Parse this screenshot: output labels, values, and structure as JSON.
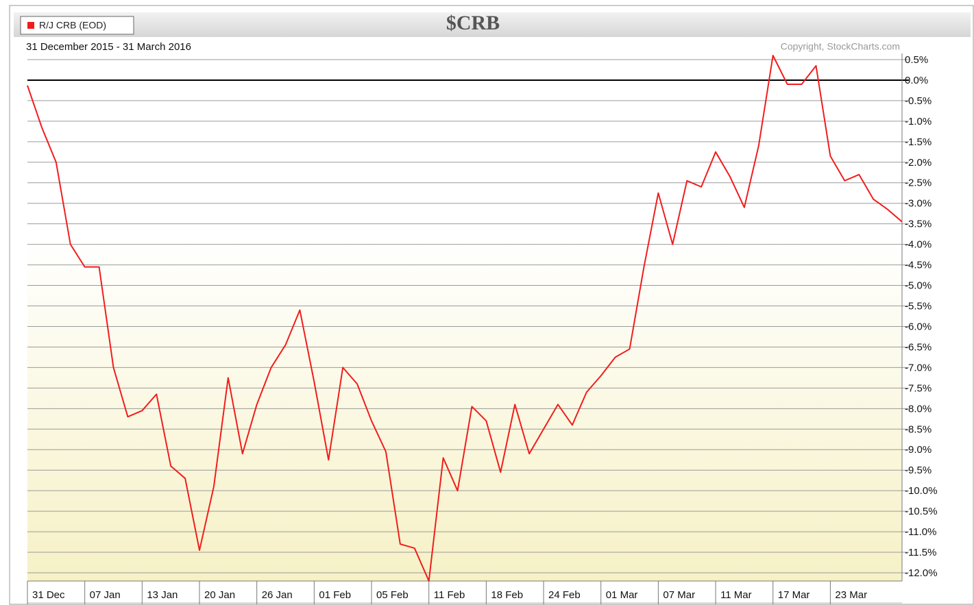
{
  "chart_data": {
    "type": "line",
    "title": "$CRB",
    "subtitle": "31 December 2015 - 31 March 2016",
    "copyright": "Copyright, StockCharts.com",
    "series": [
      {
        "name": "R/J CRB (EOD)",
        "color": "#f21c1c",
        "values": [
          -0.13,
          -1.15,
          -2.0,
          -4.0,
          -4.55,
          -4.55,
          -7.0,
          -8.2,
          -8.05,
          -7.65,
          -9.4,
          -9.7,
          -11.45,
          -9.9,
          -7.25,
          -9.1,
          -7.9,
          -7.0,
          -6.45,
          -5.6,
          -7.35,
          -9.25,
          -7.0,
          -7.4,
          -8.3,
          -9.05,
          -11.3,
          -11.4,
          -12.2,
          -9.2,
          -10.0,
          -7.95,
          -8.3,
          -9.55,
          -7.9,
          -9.1,
          -8.5,
          -7.9,
          -8.4,
          -7.6,
          -7.2,
          -6.75,
          -6.55,
          -4.55,
          -2.75,
          -4.0,
          -2.45,
          -2.6,
          -1.75,
          -2.35,
          -3.1,
          -1.6,
          0.6,
          -0.1,
          -0.1,
          0.35,
          -1.85,
          -2.45,
          -2.3,
          -2.9,
          -3.15,
          -3.45
        ]
      }
    ],
    "categories": [
      "31 Dec",
      null,
      null,
      null,
      "07 Jan",
      null,
      null,
      null,
      "13 Jan",
      null,
      null,
      null,
      "20 Jan",
      null,
      null,
      null,
      "26 Jan",
      null,
      null,
      null,
      "01 Feb",
      null,
      null,
      null,
      "05 Feb",
      null,
      null,
      null,
      "11 Feb",
      null,
      null,
      null,
      "18 Feb",
      null,
      null,
      null,
      "24 Feb",
      null,
      null,
      null,
      "01 Mar",
      null,
      null,
      null,
      "07 Mar",
      null,
      null,
      null,
      "11 Mar",
      null,
      null,
      null,
      "17 Mar",
      null,
      null,
      null,
      "23 Mar",
      null,
      null,
      null,
      null,
      null
    ],
    "ylim": [
      -12.2,
      0.65
    ],
    "yticks": [
      {
        "value": 0.5,
        "label": "0.5%"
      },
      {
        "value": 0,
        "label": "0.0%"
      },
      {
        "value": -0.5,
        "label": "-0.5%"
      },
      {
        "value": -1,
        "label": "-1.0%"
      },
      {
        "value": -1.5,
        "label": "-1.5%"
      },
      {
        "value": -2,
        "label": "-2.0%"
      },
      {
        "value": -2.5,
        "label": "-2.5%"
      },
      {
        "value": -3,
        "label": "-3.0%"
      },
      {
        "value": -3.5,
        "label": "-3.5%"
      },
      {
        "value": -4,
        "label": "-4.0%"
      },
      {
        "value": -4.5,
        "label": "-4.5%"
      },
      {
        "value": -5,
        "label": "-5.0%"
      },
      {
        "value": -5.5,
        "label": "-5.5%"
      },
      {
        "value": -6,
        "label": "-6.0%"
      },
      {
        "value": -6.5,
        "label": "-6.5%"
      },
      {
        "value": -7,
        "label": "-7.0%"
      },
      {
        "value": -7.5,
        "label": "-7.5%"
      },
      {
        "value": -8,
        "label": "-8.0%"
      },
      {
        "value": -8.5,
        "label": "-8.5%"
      },
      {
        "value": -9,
        "label": "-9.0%"
      },
      {
        "value": -9.5,
        "label": "-9.5%"
      },
      {
        "value": -10,
        "label": "-10.0%"
      },
      {
        "value": -10.5,
        "label": "-10.5%"
      },
      {
        "value": -11,
        "label": "-11.0%"
      },
      {
        "value": -11.5,
        "label": "-11.5%"
      },
      {
        "value": -12,
        "label": "-12.0%"
      }
    ],
    "grid": true
  }
}
